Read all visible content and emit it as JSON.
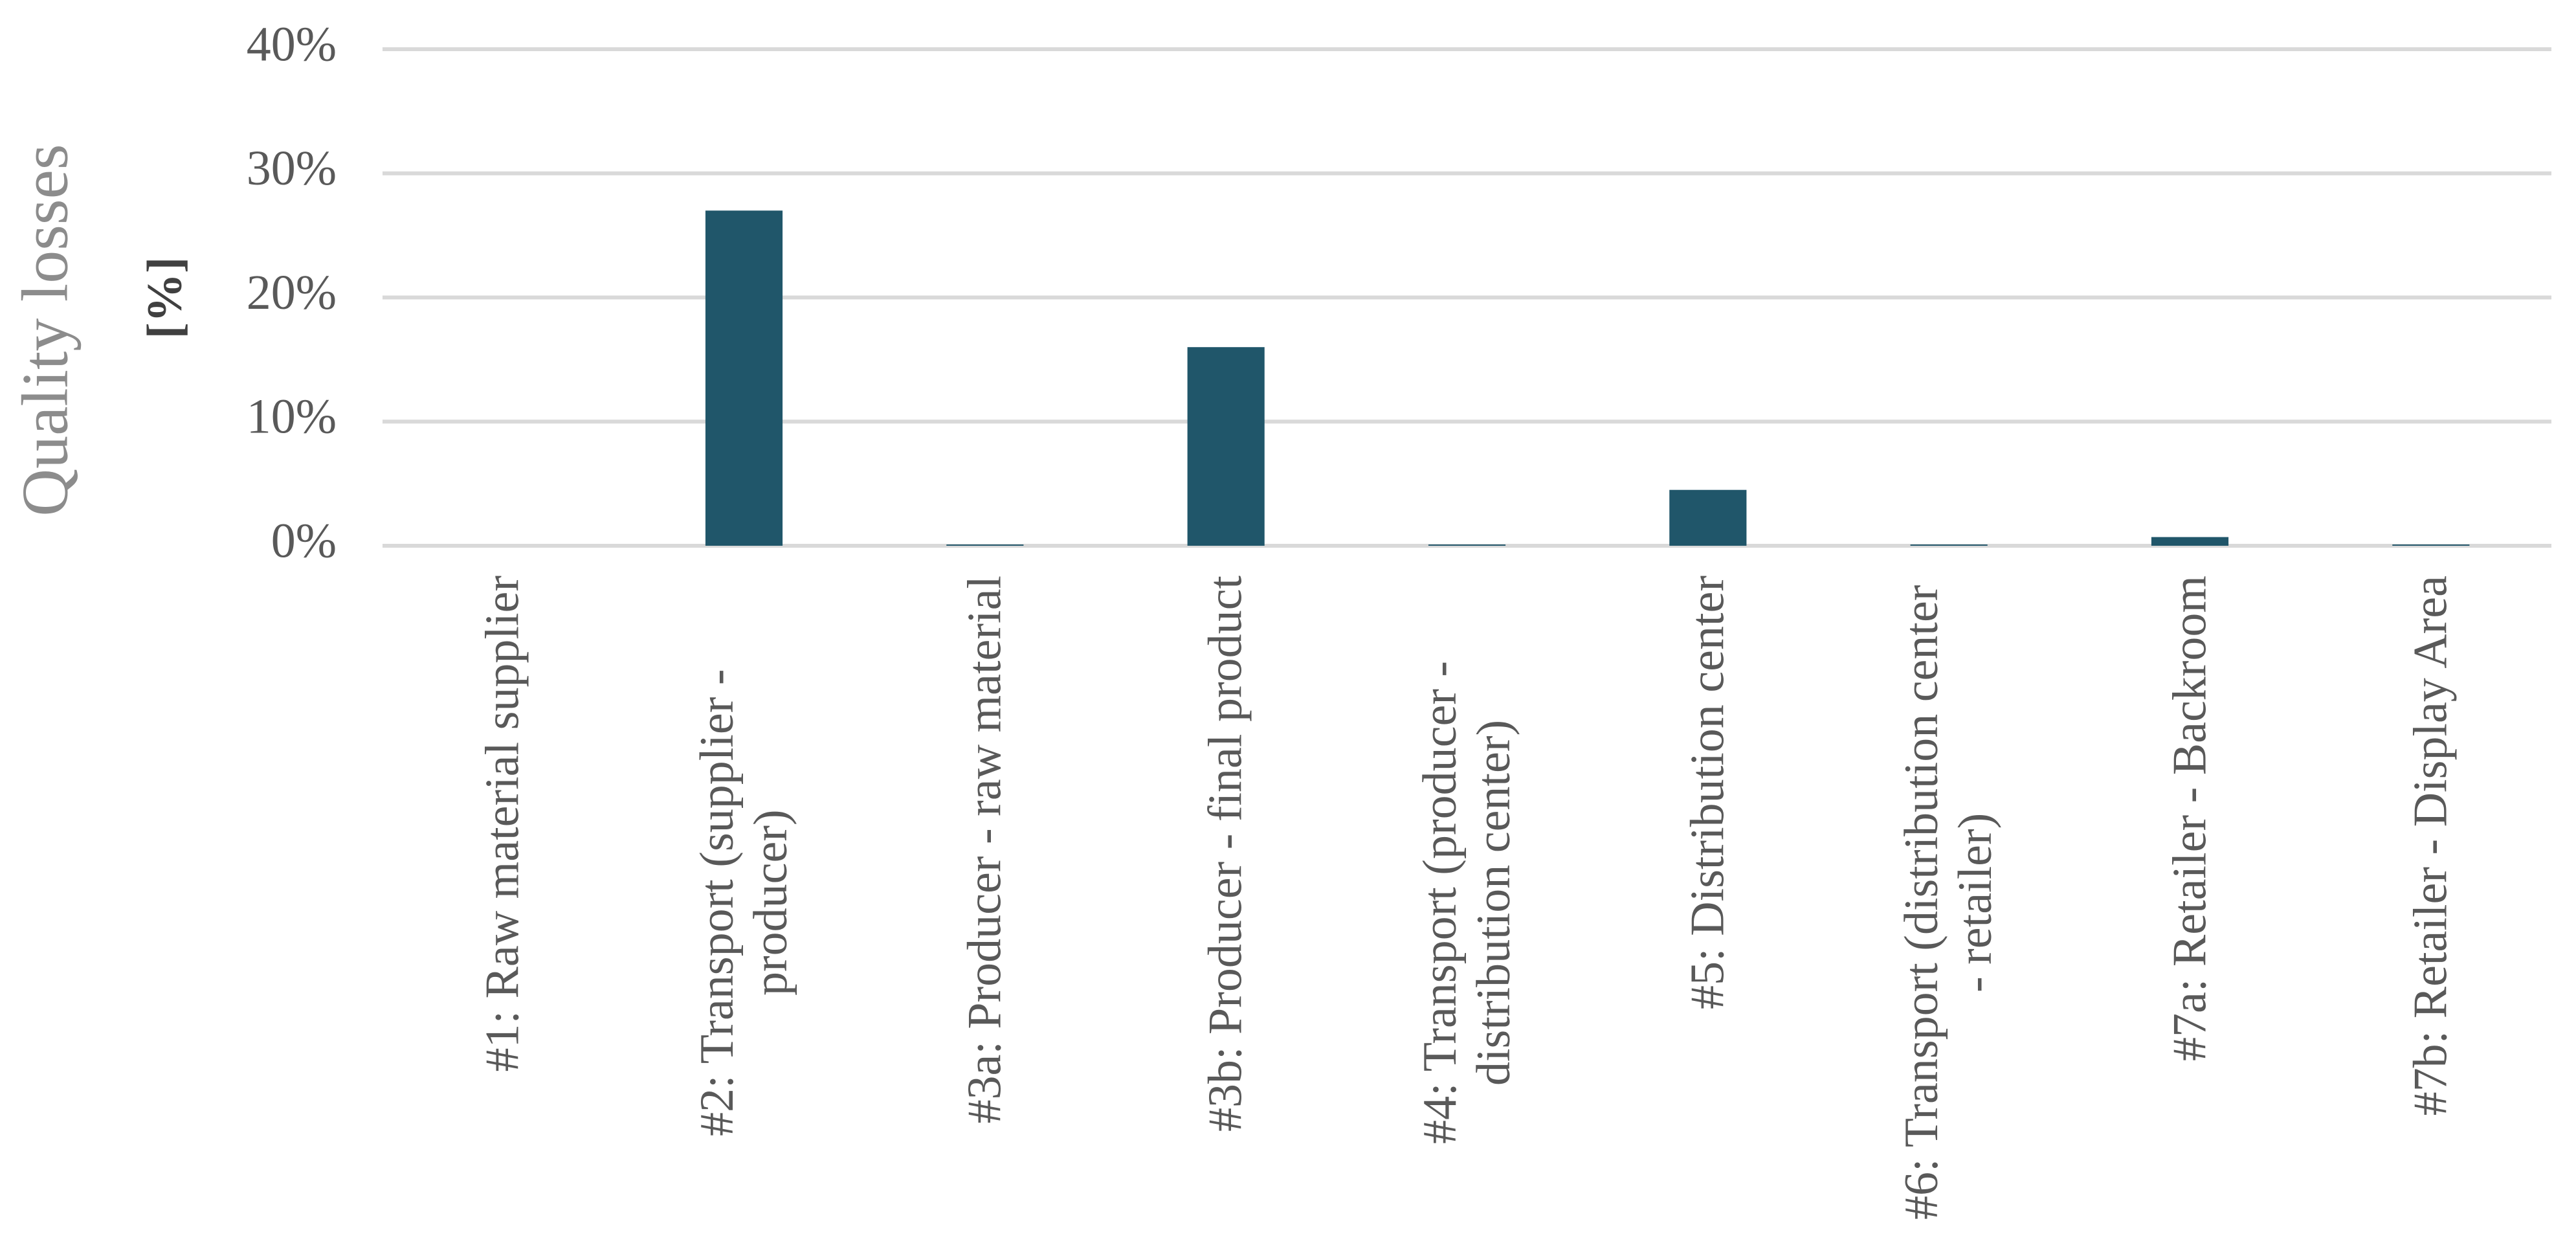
{
  "chart_data": {
    "type": "bar",
    "y_label": "Quality losses",
    "y_unit_label": "[%]",
    "categories": [
      "#1: Raw material supplier",
      "#2: Transport (supplier - producer)",
      "#3a: Producer - raw material",
      "#3b: Producer - final product",
      "#4: Transport (producer - distribution center)",
      "#5: Distribution center",
      "#6: Transport (distribution center - retailer)",
      "#7a: Retailer - Backroom",
      "#7b: Retailer - Display Area"
    ],
    "values": [
      0,
      27,
      0.1,
      16,
      0.1,
      4.5,
      0.1,
      0.7,
      0.1
    ],
    "color": "#20566a",
    "ylim": [
      0,
      40
    ],
    "yticks": [
      {
        "value": 0,
        "label": "0%"
      },
      {
        "value": 10,
        "label": "10%"
      },
      {
        "value": 20,
        "label": "20%"
      },
      {
        "value": 30,
        "label": "30%"
      },
      {
        "value": 40,
        "label": "40%"
      }
    ],
    "grid": true
  }
}
